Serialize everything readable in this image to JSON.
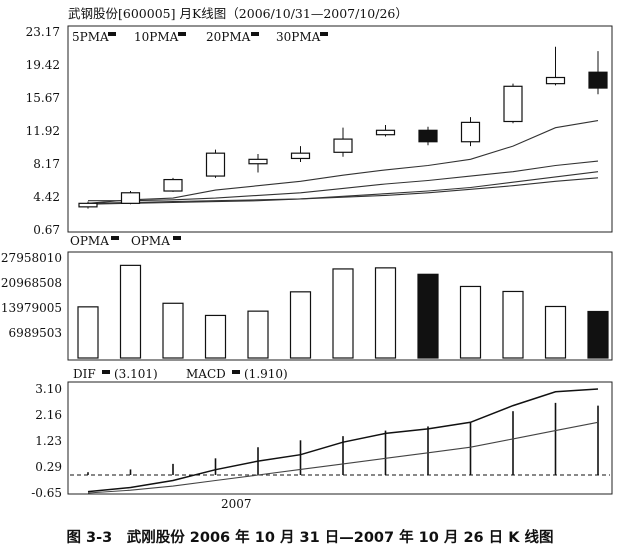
{
  "header": {
    "title": "武钢股份[600005] 月K线图（2006/10/31—2007/10/26）"
  },
  "caption": "图 3-3　武刚股份 2006 年 10 月 31 日—2007 年 10 月 26 日 K 线图",
  "chart_data": [
    {
      "type": "candlestick",
      "panel": "price",
      "ylim": [
        0.67,
        23.17
      ],
      "yticks": [
        "23.17",
        "19.42",
        "15.67",
        "11.92",
        "8.17",
        "4.42",
        "0.67"
      ],
      "legend": [
        "5PMA",
        "10PMA",
        "20PMA",
        "30PMA"
      ],
      "candles": [
        {
          "open": 3.3,
          "high": 3.9,
          "low": 3.1,
          "close": 3.7
        },
        {
          "open": 3.7,
          "high": 5.1,
          "low": 3.6,
          "close": 4.9
        },
        {
          "open": 5.1,
          "high": 6.6,
          "low": 5.0,
          "close": 6.4
        },
        {
          "open": 6.8,
          "high": 9.8,
          "low": 6.6,
          "close": 9.4
        },
        {
          "open": 8.2,
          "high": 9.3,
          "low": 7.2,
          "close": 8.7
        },
        {
          "open": 8.8,
          "high": 10.2,
          "low": 8.4,
          "close": 9.4
        },
        {
          "open": 9.5,
          "high": 12.3,
          "low": 9.0,
          "close": 11.0
        },
        {
          "open": 11.5,
          "high": 12.6,
          "low": 11.3,
          "close": 12.0
        },
        {
          "open": 12.0,
          "high": 12.4,
          "low": 10.3,
          "close": 10.7
        },
        {
          "open": 10.7,
          "high": 13.5,
          "low": 10.2,
          "close": 12.9
        },
        {
          "open": 13.0,
          "high": 17.3,
          "low": 12.8,
          "close": 17.0
        },
        {
          "open": 17.3,
          "high": 21.5,
          "low": 17.1,
          "close": 18.0
        },
        {
          "open": 18.6,
          "high": 21.0,
          "low": 16.1,
          "close": 16.8
        }
      ],
      "ma_lines": [
        {
          "values": [
            3.7,
            4.1,
            4.3,
            5.2,
            5.7,
            6.2,
            6.9,
            7.5,
            8.0,
            8.7,
            10.2,
            12.3,
            13.1
          ]
        },
        {
          "values": [
            4.0,
            4.0,
            4.1,
            4.3,
            4.6,
            4.9,
            5.4,
            5.9,
            6.3,
            6.8,
            7.3,
            8.0,
            8.5
          ]
        },
        {
          "values": [
            3.7,
            3.8,
            3.9,
            4.0,
            4.1,
            4.2,
            4.5,
            4.8,
            5.1,
            5.5,
            6.1,
            6.7,
            7.3
          ]
        },
        {
          "values": [
            3.6,
            3.7,
            3.8,
            3.9,
            4.0,
            4.2,
            4.4,
            4.6,
            4.9,
            5.3,
            5.7,
            6.2,
            6.6
          ]
        }
      ]
    },
    {
      "type": "bar",
      "panel": "volume",
      "ylim": [
        0,
        27958010
      ],
      "yticks": [
        "27958010",
        "20968508",
        "13979005",
        "6989503"
      ],
      "legend": [
        "OPMA",
        "OPMA"
      ],
      "values": [
        14300000,
        25900000,
        15300000,
        11900000,
        13100000,
        18500000,
        24900000,
        25200000,
        23400000,
        20000000,
        18600000,
        14400000,
        13000000
      ],
      "down": [
        false,
        false,
        false,
        false,
        false,
        false,
        false,
        false,
        true,
        false,
        false,
        false,
        true
      ]
    },
    {
      "type": "line",
      "panel": "macd",
      "ylim": [
        -0.65,
        3.1
      ],
      "yticks": [
        "3.10",
        "2.16",
        "1.23",
        "0.29",
        "-0.65"
      ],
      "legend": [
        {
          "name": "DIF",
          "value": "(3.101)"
        },
        {
          "name": "MACD",
          "value": "(1.910)"
        }
      ],
      "xtick": "2007",
      "series": [
        {
          "name": "DIF",
          "values": [
            -0.6,
            -0.45,
            -0.2,
            0.19,
            0.5,
            0.73,
            1.18,
            1.5,
            1.66,
            1.9,
            2.5,
            3.0,
            3.1
          ]
        },
        {
          "name": "MACD",
          "values": [
            -0.65,
            -0.55,
            -0.4,
            -0.2,
            0.0,
            0.2,
            0.4,
            0.6,
            0.8,
            1.0,
            1.3,
            1.6,
            1.9
          ]
        }
      ],
      "histogram": [
        0.1,
        0.2,
        0.4,
        0.6,
        1.0,
        1.25,
        1.4,
        1.6,
        1.75,
        1.9,
        2.3,
        2.6,
        2.5
      ],
      "zero_line": 0.0
    }
  ]
}
